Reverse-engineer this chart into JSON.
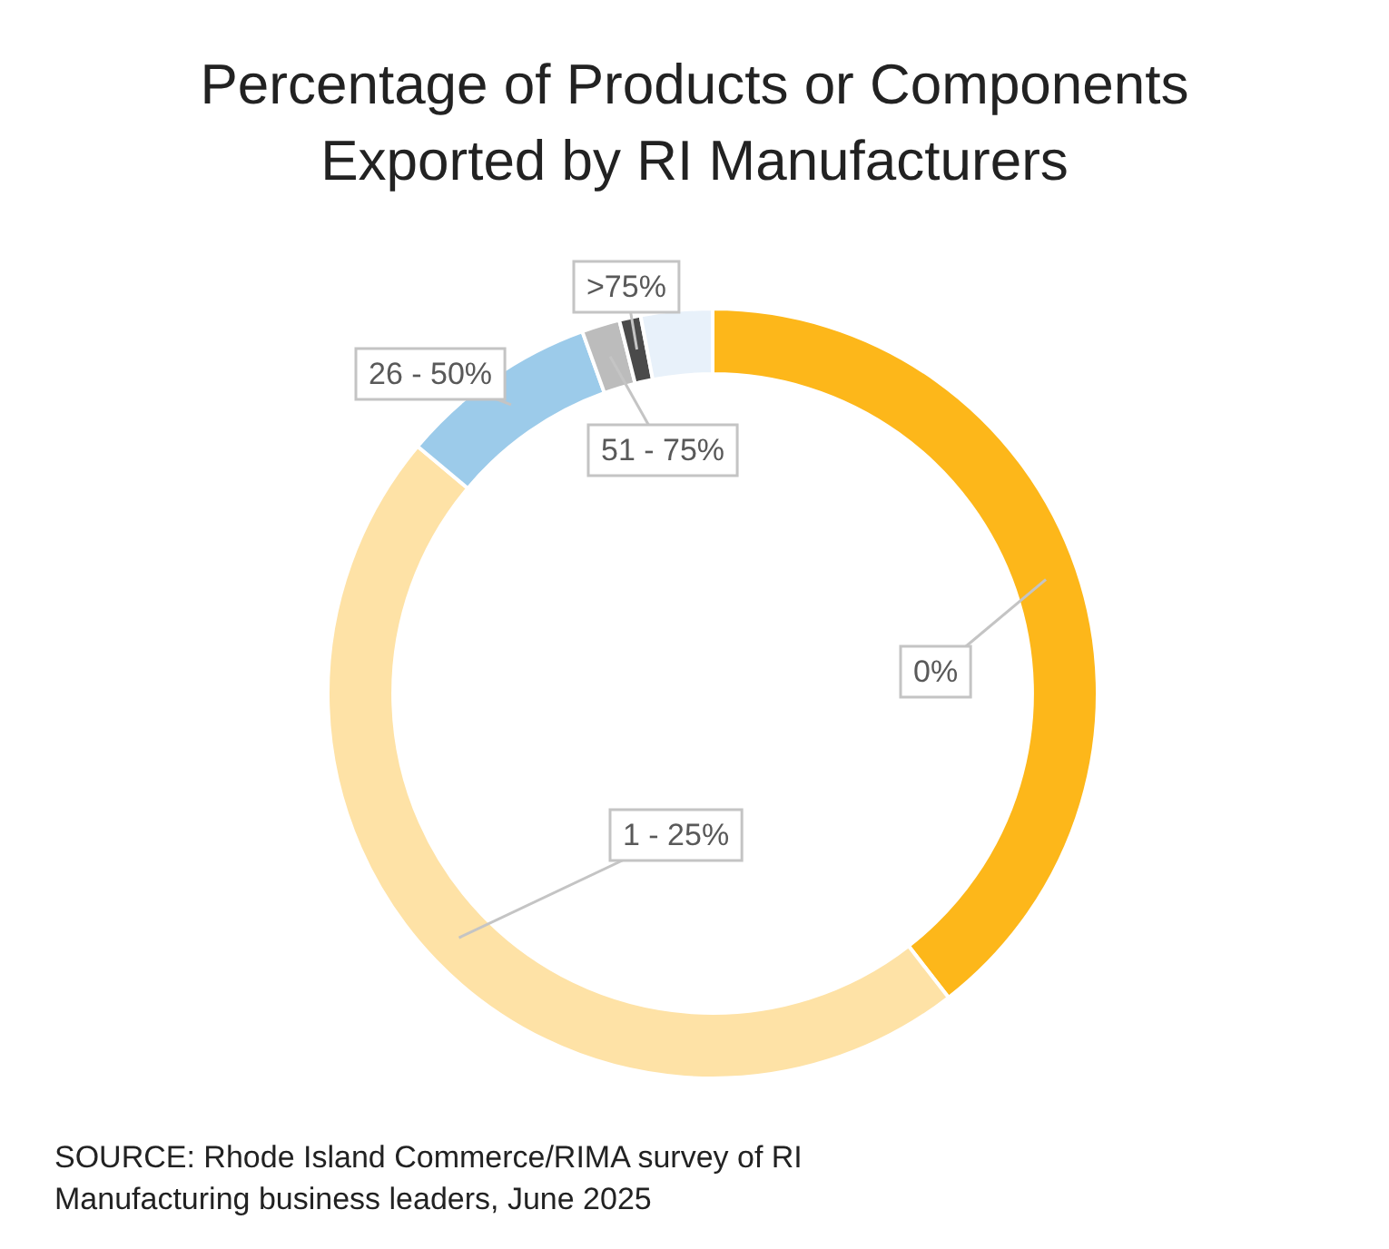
{
  "chart_data": {
    "type": "donut",
    "title": "Percentage of Products or Components Exported by RI Manufacturers",
    "categories": [
      "0%",
      "1 - 25%",
      "26 - 50%",
      "51 - 75%",
      ">75%",
      null
    ],
    "values": [
      39.5,
      46.6,
      8.4,
      1.6,
      0.9,
      3.0
    ],
    "colors": [
      "#fdb71a",
      "#fee2a6",
      "#9ccbea",
      "#bcbcbc",
      "#4a4a4a",
      "#e8f1fa"
    ],
    "legend": false,
    "annotations": [
      "SOURCE: Rhode Island Commerce/RIMA survey of RI Manufacturing business leaders, June 2025"
    ]
  }
}
